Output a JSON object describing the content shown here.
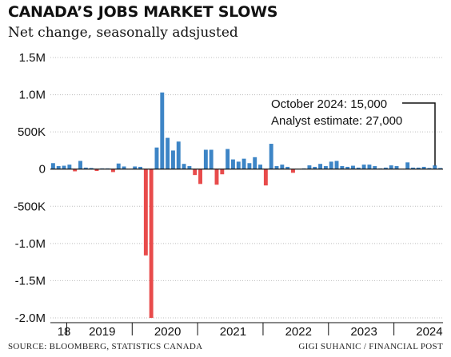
{
  "header": {
    "title": "CANADA’S JOBS MARKET SLOWS",
    "subtitle": "Net change, seasonally adsjusted"
  },
  "footer": {
    "source": "SOURCE: BLOOMBERG, STATISTICS CANADA",
    "credit": "GIGI SUHANIC / FINANCIAL POST"
  },
  "chart_data": {
    "type": "bar",
    "ylabel": "",
    "ylim": [
      -2000000,
      1500000
    ],
    "yticks": [
      {
        "value": 1500000,
        "label": "1.5M"
      },
      {
        "value": 1000000,
        "label": "1.0M"
      },
      {
        "value": 500000,
        "label": "500K"
      },
      {
        "value": 0,
        "label": "0"
      },
      {
        "value": -500000,
        "label": "-500K"
      },
      {
        "value": -1000000,
        "label": "-1.0M"
      },
      {
        "value": -1500000,
        "label": "-1.5M"
      },
      {
        "value": -2000000,
        "label": "-2.0M"
      }
    ],
    "xticks": [
      {
        "label": "18",
        "month": "2018-12"
      },
      {
        "label": "2019",
        "month": "2019-07"
      },
      {
        "label": "2020",
        "month": "2020-07"
      },
      {
        "label": "2021",
        "month": "2021-07"
      },
      {
        "label": "2022",
        "month": "2022-07"
      },
      {
        "label": "2023",
        "month": "2023-07"
      },
      {
        "label": "2024",
        "month": "2024-07"
      }
    ],
    "year_starts": [
      "2019-01",
      "2020-01",
      "2021-01",
      "2022-01",
      "2023-01",
      "2024-01"
    ],
    "first_month": "2018-10",
    "colors": {
      "positive": "#3d85c6",
      "negative": "#e84b4b"
    },
    "values": [
      80000,
      40000,
      45000,
      60000,
      -30000,
      110000,
      20000,
      15000,
      -25000,
      10000,
      10000,
      -40000,
      75000,
      35000,
      0,
      35000,
      30000,
      -1160000,
      -2000000,
      290000,
      1030000,
      420000,
      250000,
      370000,
      70000,
      40000,
      -80000,
      -200000,
      260000,
      260000,
      -210000,
      -70000,
      270000,
      130000,
      100000,
      140000,
      80000,
      160000,
      60000,
      -220000,
      340000,
      40000,
      60000,
      30000,
      -50000,
      0,
      10000,
      50000,
      30000,
      70000,
      40000,
      100000,
      110000,
      40000,
      30000,
      45000,
      20000,
      60000,
      60000,
      40000,
      10000,
      20000,
      50000,
      40000,
      0,
      90000,
      20000,
      20000,
      30000,
      15000,
      50000,
      15000
    ],
    "annotations": [
      "October 2024: 15,000",
      "Analyst estimate: 27,000"
    ]
  }
}
